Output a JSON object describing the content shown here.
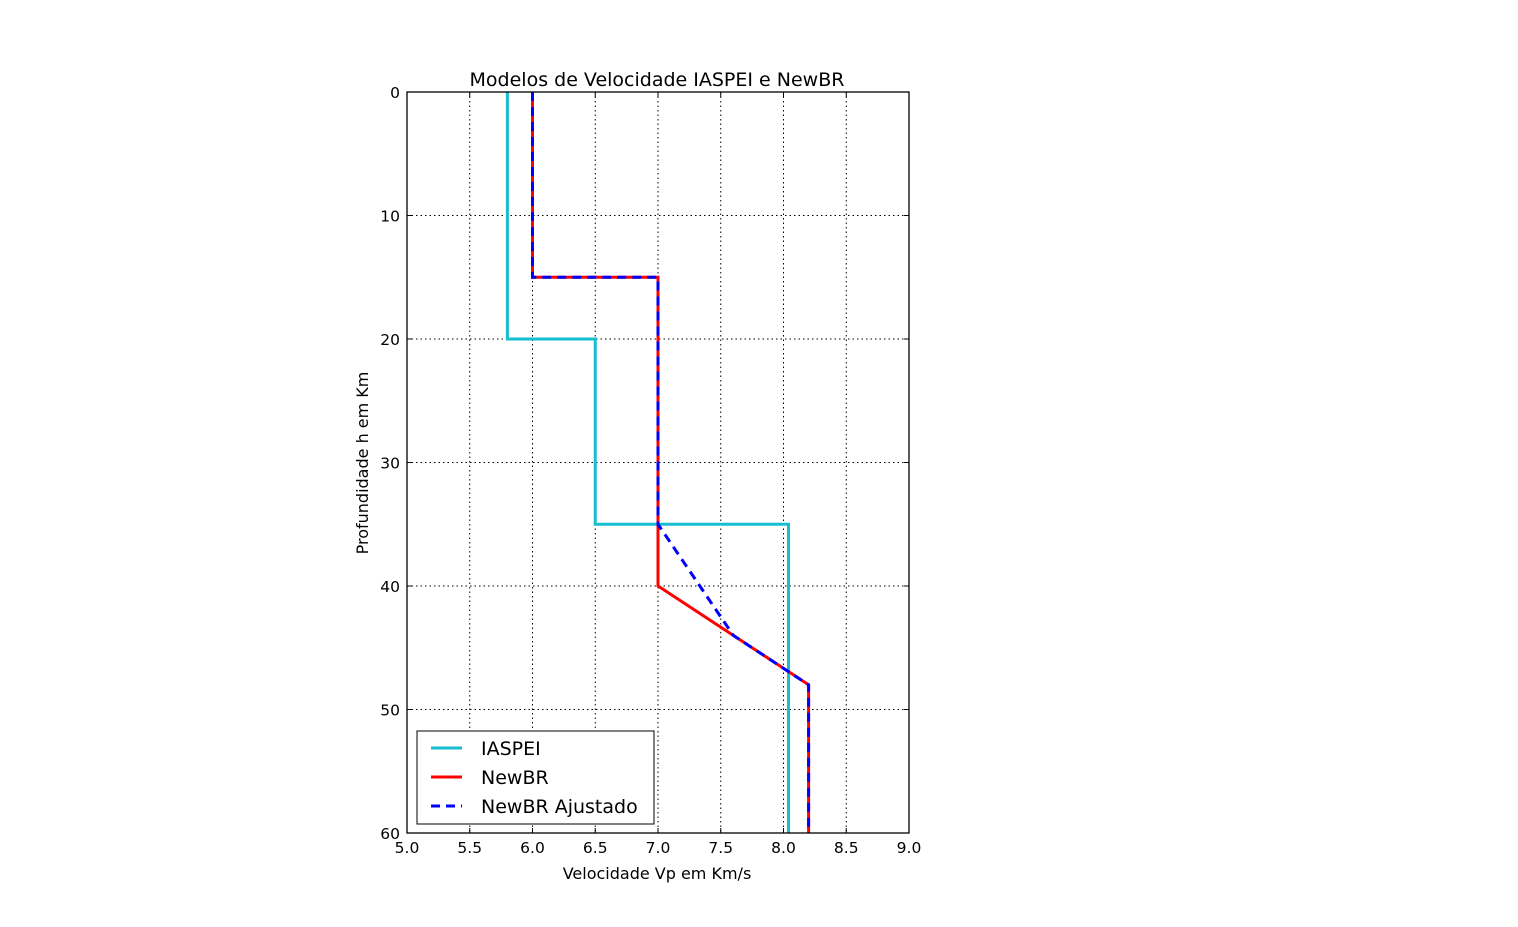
{
  "chart_data": {
    "type": "line",
    "title": "Modelos de Velocidade IASPEI e NewBR",
    "xlabel": "Velocidade Vp em Km/s",
    "ylabel": "Profundidade h em Km",
    "xlim": [
      5.0,
      9.0
    ],
    "ylim": [
      60,
      0
    ],
    "y_axis_inverted": true,
    "grid": true,
    "legend_position": "lower-left",
    "x_ticks": [
      "5.0",
      "5.5",
      "6.0",
      "6.5",
      "7.0",
      "7.5",
      "8.0",
      "8.5",
      "9.0"
    ],
    "y_ticks": [
      "0",
      "10",
      "20",
      "30",
      "40",
      "50",
      "60"
    ],
    "series": [
      {
        "name": "IASPEI",
        "color": "#17becf",
        "style": "solid",
        "points": [
          [
            5.8,
            0
          ],
          [
            5.8,
            20
          ],
          [
            6.5,
            20
          ],
          [
            6.5,
            35
          ],
          [
            8.04,
            35
          ],
          [
            8.04,
            60
          ]
        ]
      },
      {
        "name": "NewBR",
        "color": "#ff0000",
        "style": "solid",
        "points": [
          [
            6.0,
            0
          ],
          [
            6.0,
            15
          ],
          [
            7.0,
            15
          ],
          [
            7.0,
            40
          ],
          [
            8.2,
            48
          ],
          [
            8.2,
            60
          ]
        ]
      },
      {
        "name": "NewBR Ajustado",
        "color": "#0000ff",
        "style": "dashed",
        "points": [
          [
            6.0,
            0
          ],
          [
            6.0,
            15
          ],
          [
            7.0,
            15
          ],
          [
            7.0,
            35
          ],
          [
            7.2,
            38
          ],
          [
            7.6,
            44
          ],
          [
            8.2,
            48
          ],
          [
            8.2,
            60
          ]
        ]
      }
    ]
  }
}
